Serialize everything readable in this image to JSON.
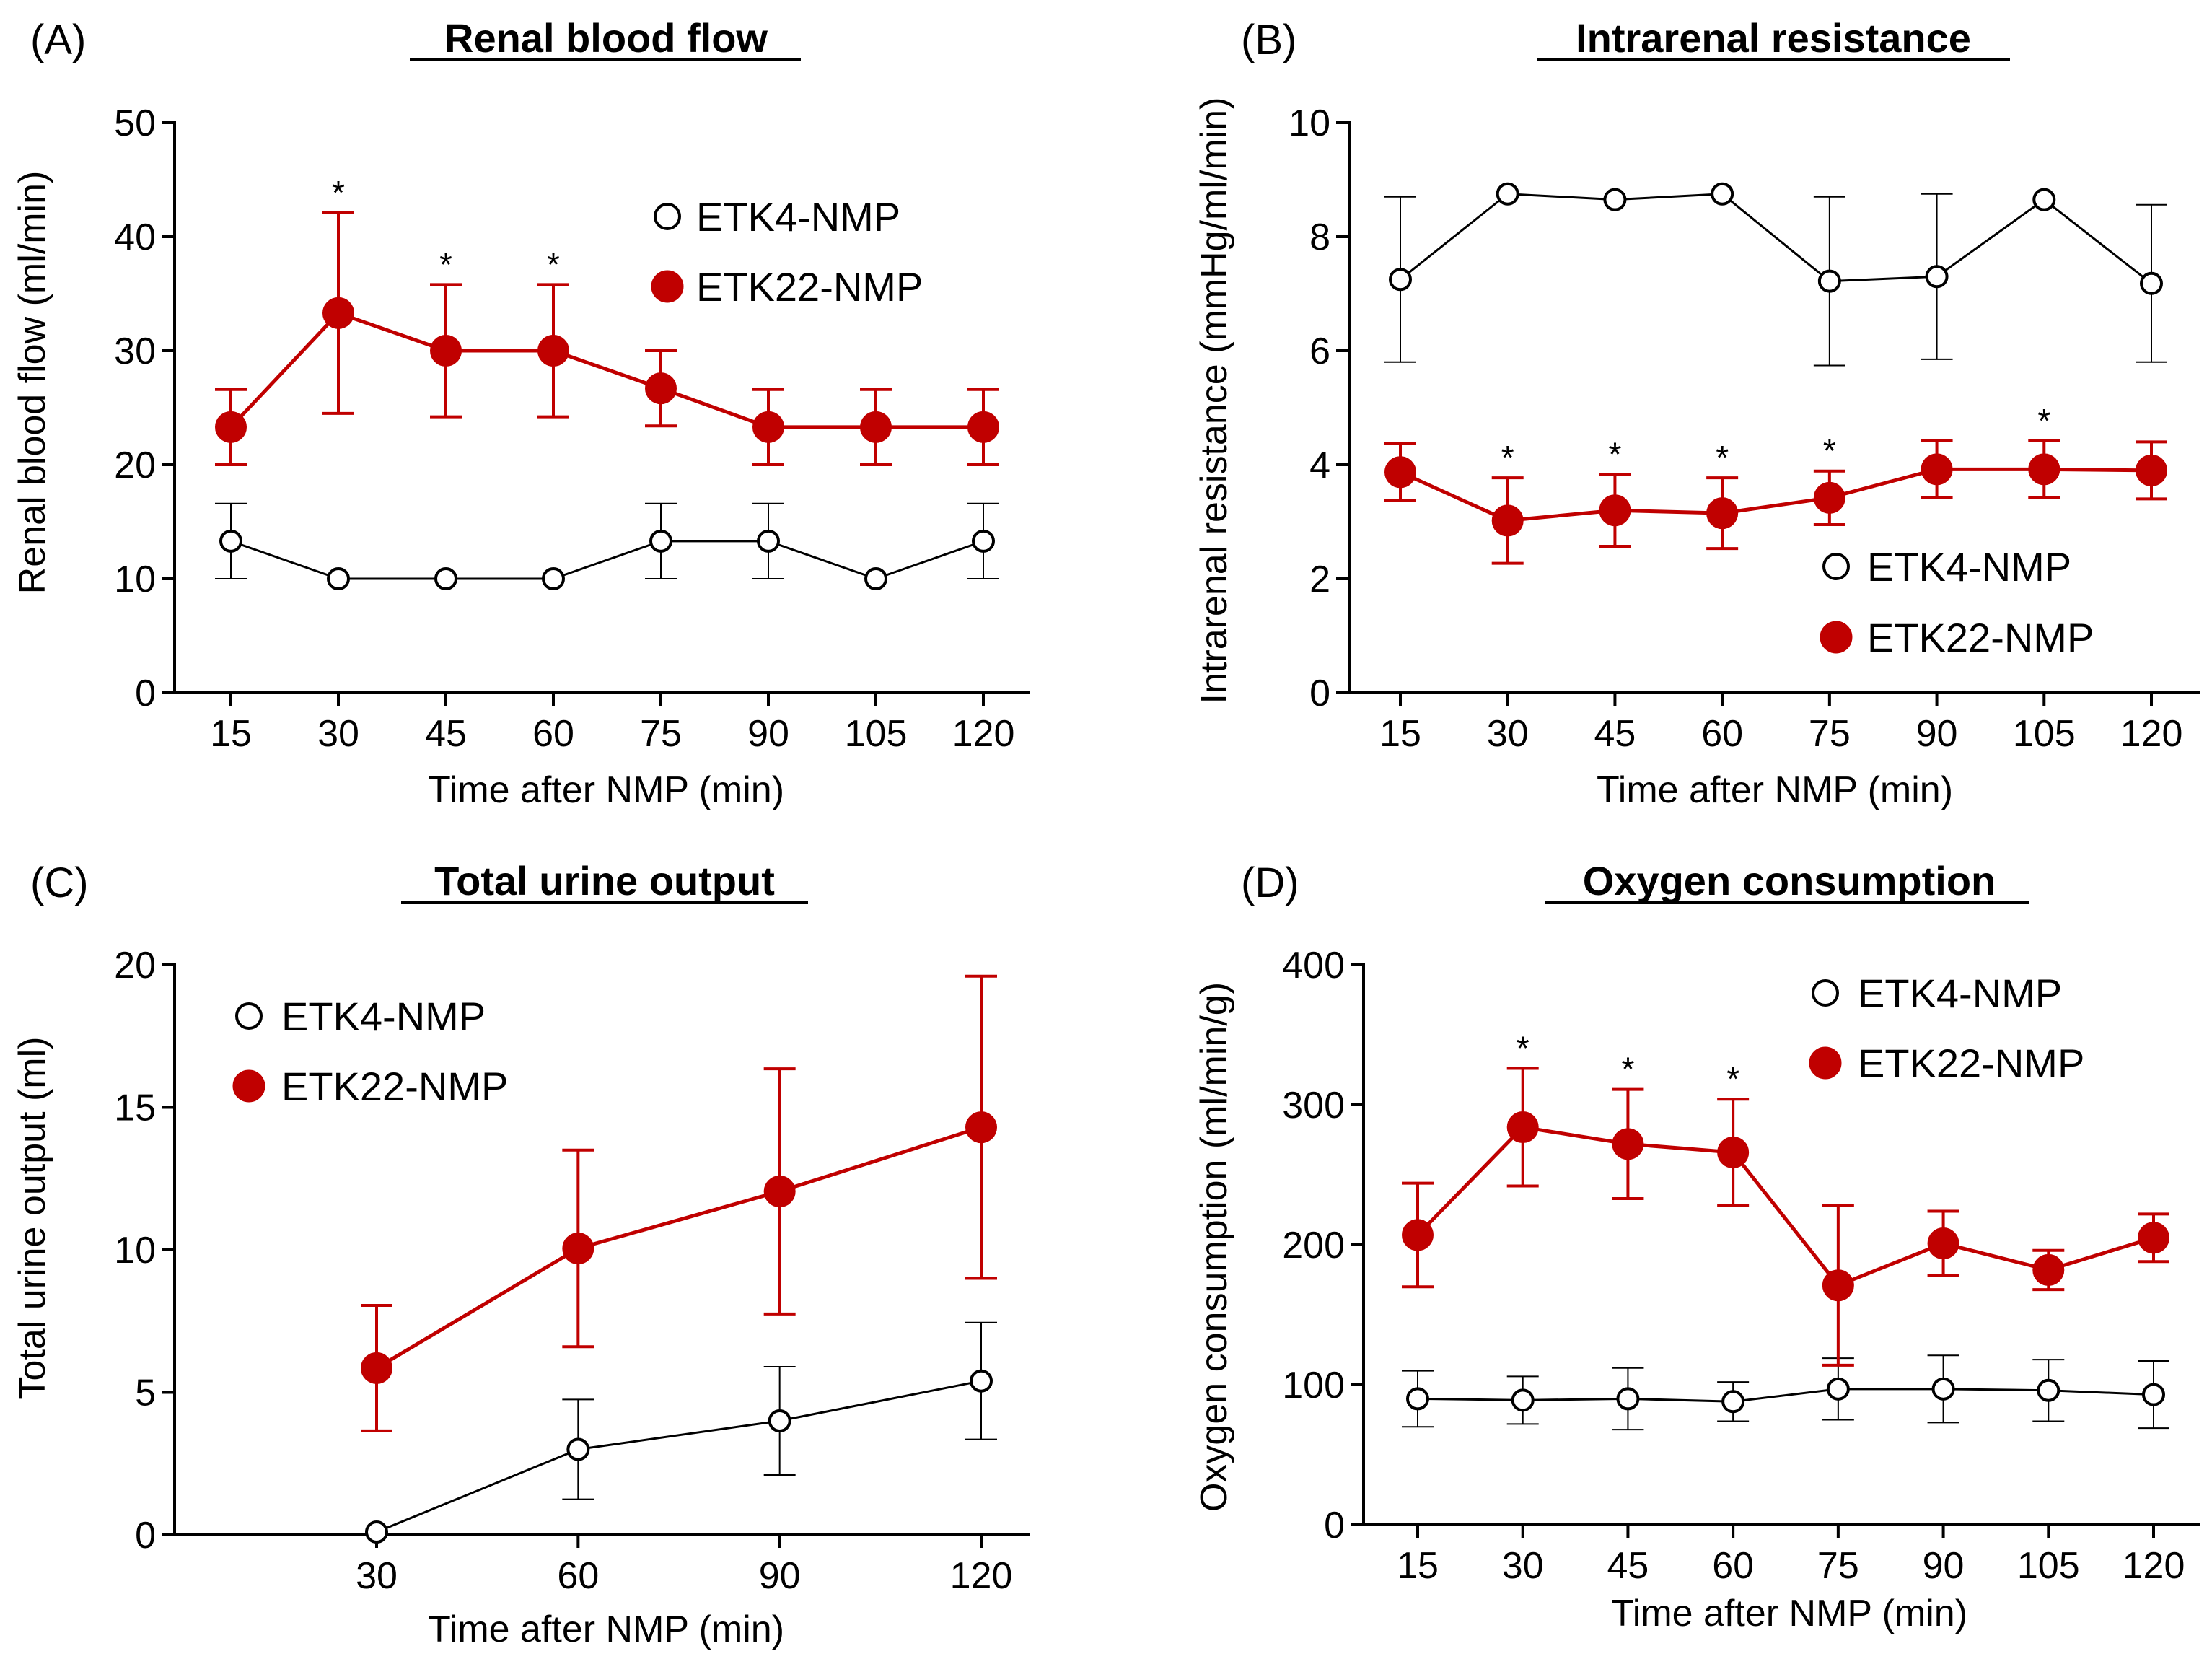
{
  "colors": {
    "etk4": "#000000",
    "etk22": "#c00000",
    "etk4_fill": "#ffffff"
  },
  "chart_data": [
    {
      "type": "line",
      "panel_label": "(A)",
      "title": "Renal blood flow",
      "xlabel": "Time after NMP (min)",
      "ylabel": "Renal blood flow (ml/min)",
      "categories": [
        "15",
        "30",
        "45",
        "60",
        "75",
        "90",
        "105",
        "120"
      ],
      "yticks": [
        "0",
        "10",
        "20",
        "30",
        "40",
        "50"
      ],
      "ylim": [
        0,
        50
      ],
      "legend_position": "top-right",
      "series": [
        {
          "name": "ETK4-NMP",
          "values": [
            13.3,
            10,
            10,
            10,
            13.3,
            13.3,
            10,
            13.3
          ],
          "errors": [
            3.3,
            0,
            0,
            0,
            3.3,
            3.3,
            0,
            3.3
          ]
        },
        {
          "name": "ETK22-NMP",
          "values": [
            23.3,
            33.3,
            30,
            30,
            26.7,
            23.3,
            23.3,
            23.3
          ],
          "errors": [
            3.3,
            8.8,
            5.8,
            5.8,
            3.3,
            3.3,
            3.3,
            3.3
          ]
        }
      ],
      "significance": [
        "",
        "*",
        "*",
        "*",
        "",
        "",
        "",
        ""
      ]
    },
    {
      "type": "line",
      "panel_label": "(B)",
      "title": "Intrarenal resistance",
      "xlabel": "Time after NMP (min)",
      "ylabel": "Intrarenal resistance (mmHg/ml/min)",
      "categories": [
        "15",
        "30",
        "45",
        "60",
        "75",
        "90",
        "105",
        "120"
      ],
      "yticks": [
        "0",
        "2",
        "4",
        "6",
        "8",
        "10"
      ],
      "ylim": [
        0,
        10
      ],
      "legend_position": "bottom-right",
      "series": [
        {
          "name": "ETK4-NMP",
          "values": [
            7.25,
            8.75,
            8.65,
            8.75,
            7.22,
            7.3,
            8.65,
            7.18
          ],
          "errors": [
            1.45,
            0,
            0,
            0,
            1.48,
            1.45,
            0,
            1.38
          ]
        },
        {
          "name": "ETK22-NMP",
          "values": [
            3.87,
            3.02,
            3.2,
            3.15,
            3.42,
            3.92,
            3.92,
            3.9
          ],
          "errors": [
            0.5,
            0.75,
            0.63,
            0.62,
            0.47,
            0.5,
            0.5,
            0.5
          ]
        }
      ],
      "significance": [
        "",
        "*",
        "*",
        "*",
        "*",
        "",
        "*",
        ""
      ]
    },
    {
      "type": "line",
      "panel_label": "(C)",
      "title": "Total urine output",
      "xlabel": "Time after NMP (min)",
      "ylabel": "Total urine output (ml)",
      "categories": [
        "30",
        "60",
        "90",
        "120"
      ],
      "yticks": [
        "0",
        "5",
        "10",
        "15",
        "20"
      ],
      "ylim": [
        0,
        20
      ],
      "legend_position": "top-left",
      "series": [
        {
          "name": "ETK4-NMP",
          "values": [
            0.1,
            3.0,
            4.0,
            5.4
          ],
          "errors": [
            0,
            1.75,
            1.9,
            2.05
          ]
        },
        {
          "name": "ETK22-NMP",
          "values": [
            5.85,
            10.05,
            12.05,
            14.3
          ],
          "errors": [
            2.2,
            3.45,
            4.3,
            5.3
          ]
        }
      ],
      "significance": [
        "",
        "",
        "",
        ""
      ]
    },
    {
      "type": "line",
      "panel_label": "(D)",
      "title": "Oxygen consumption",
      "xlabel": "Time after NMP (min)",
      "ylabel": "Oxygen consumption (ml/min/g)",
      "categories": [
        "15",
        "30",
        "45",
        "60",
        "75",
        "90",
        "105",
        "120"
      ],
      "yticks": [
        "0",
        "100",
        "200",
        "300",
        "400"
      ],
      "ylim": [
        0,
        400
      ],
      "legend_position": "top-right",
      "series": [
        {
          "name": "ETK4-NMP",
          "values": [
            90,
            89,
            90,
            88,
            97,
            97,
            96,
            93
          ],
          "errors": [
            20,
            17,
            22,
            14,
            22,
            24,
            22,
            24
          ]
        },
        {
          "name": "ETK22-NMP",
          "values": [
            207,
            284,
            272,
            266,
            171,
            201,
            182,
            205
          ],
          "errors": [
            37,
            42,
            39,
            38,
            57,
            23,
            14,
            17
          ]
        }
      ],
      "significance": [
        "",
        "*",
        "*",
        "*",
        "",
        "",
        "",
        ""
      ]
    }
  ]
}
